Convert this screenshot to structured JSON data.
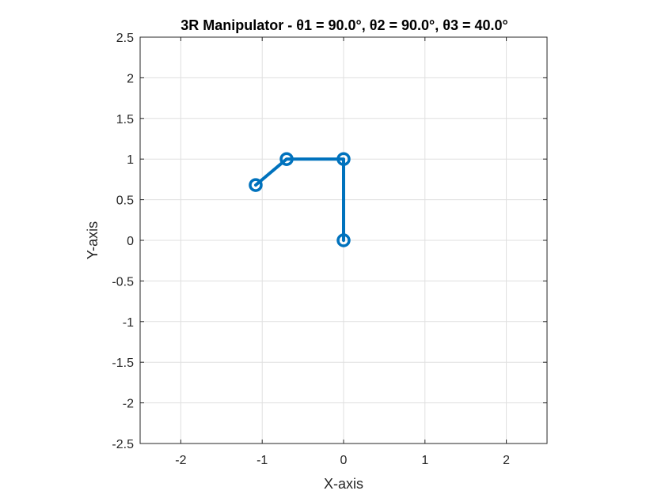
{
  "chart_data": {
    "type": "line",
    "title": "3R Manipulator - θ1 = 90.0°, θ2 = 90.0°, θ3 = 40.0°",
    "xlabel": "X-axis",
    "ylabel": "Y-axis",
    "xlim": [
      -2.5,
      2.5
    ],
    "ylim": [
      -2.5,
      2.5
    ],
    "xticks": [
      -2,
      -1,
      0,
      1,
      2
    ],
    "xtick_labels": [
      "-2",
      "-1",
      "0",
      "1",
      "2"
    ],
    "yticks": [
      -2.5,
      -2,
      -1.5,
      -1,
      -0.5,
      0,
      0.5,
      1,
      1.5,
      2,
      2.5
    ],
    "ytick_labels": [
      "-2.5",
      "-2",
      "-1.5",
      "-1",
      "-0.5",
      "0",
      "0.5",
      "1",
      "1.5",
      "2",
      "2.5"
    ],
    "grid": true,
    "series": [
      {
        "x": [
          0,
          0,
          -0.7,
          -1.08
        ],
        "y": [
          0,
          1,
          1,
          0.68
        ],
        "color": "#0072BD",
        "marker": "circle"
      }
    ]
  }
}
